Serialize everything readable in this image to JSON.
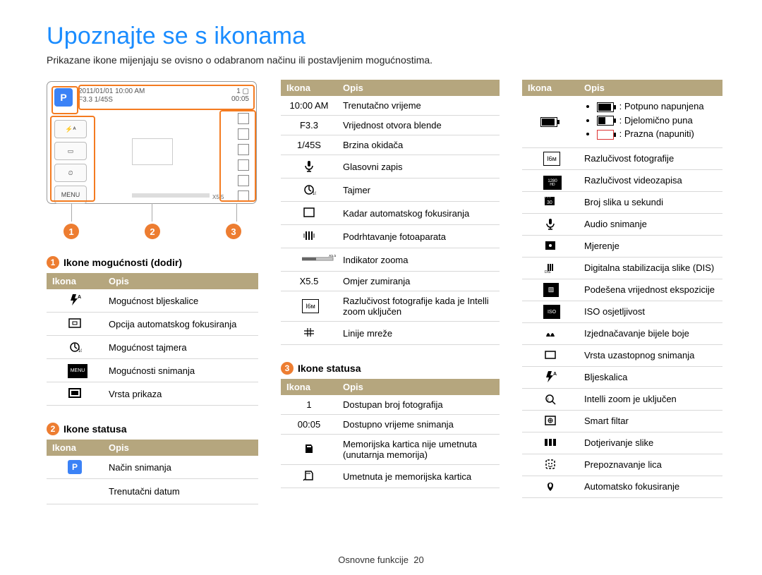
{
  "title": "Upoznajte se s ikonama",
  "subtitle": "Prikazane ikone mijenjaju se ovisno o odabranom načinu ili postavljenim mogućnostima.",
  "footer_section": "Osnovne funkcije",
  "footer_page": "20",
  "colors": {
    "title": "#1a8cff",
    "marker": "#ed7d31",
    "table_header_bg": "#b5a67e",
    "table_header_fg": "#ffffff",
    "row_border": "#d8d8d8",
    "orange_box": "#f47b20"
  },
  "screen": {
    "p_label": "P",
    "top_line1": "2011/01/01  10:00 AM",
    "top_line2": "F3.3   1/45S",
    "top_right1": "1 ▢",
    "top_right2": "00:05",
    "zoom_label": "X5.5",
    "left_buttons": [
      "⚡ᴬ",
      "▭",
      "⏲",
      "MENU"
    ]
  },
  "marker_labels": [
    "1",
    "2",
    "3"
  ],
  "sections": {
    "s1_title": "Ikone mogućnosti (dodir)",
    "s2_title": "Ikone statusa",
    "s3_title": "Ikone statusa"
  },
  "headers": {
    "icon": "Ikona",
    "desc": "Opis"
  },
  "t1": [
    {
      "icon": "flash-a",
      "desc": "Mogućnost bljeskalice"
    },
    {
      "icon": "af-frame",
      "desc": "Opcija automatskog fokusiranja"
    },
    {
      "icon": "timer",
      "desc": "Mogućnost tajmera"
    },
    {
      "icon": "menu",
      "desc": "Mogućnosti snimanja"
    },
    {
      "icon": "display",
      "desc": "Vrsta prikaza"
    }
  ],
  "t2a": [
    {
      "icon": "p-mode",
      "desc": "Način snimanja"
    },
    {
      "icon": "date",
      "icon_text": "2011/01/01",
      "desc": "Trenutačni datum"
    }
  ],
  "t2b": [
    {
      "icon_text": "10:00 AM",
      "desc": "Trenutačno vrijeme"
    },
    {
      "icon_text": "F3.3",
      "desc": "Vrijednost otvora blende"
    },
    {
      "icon_text": "1/45S",
      "desc": "Brzina okidača"
    },
    {
      "icon": "mic",
      "desc": "Glasovni zapis"
    },
    {
      "icon": "timer",
      "desc": "Tajmer"
    },
    {
      "icon": "frame",
      "desc": "Kadar automatskog fokusiranja"
    },
    {
      "icon": "shake",
      "desc": "Podrhtavanje fotoaparata"
    },
    {
      "icon": "zoom-bar",
      "desc": "Indikator zooma"
    },
    {
      "icon_text": "X5.5",
      "desc": "Omjer zumiranja"
    },
    {
      "icon": "res16m",
      "icon_text": "I6ᴍ",
      "desc": "Razlučivost fotografije kada je Intelli zoom uključen"
    },
    {
      "icon": "grid",
      "desc": "Linije mreže"
    }
  ],
  "t3": [
    {
      "icon_text": "1",
      "desc": "Dostupan broj fotografija"
    },
    {
      "icon_text": "00:05",
      "desc": "Dostupno vrijeme snimanja"
    },
    {
      "icon": "card-none",
      "desc": "Memorijska kartica nije umetnuta (unutarnja memorija)"
    },
    {
      "icon": "card",
      "desc": "Umetnuta je memorijska kartica"
    }
  ],
  "t4_battery": {
    "full": "Potpuno napunjena",
    "half": "Djelomično puna",
    "empty": "Prazna (napuniti)"
  },
  "t4": [
    {
      "icon": "res16m",
      "icon_text": "I6ᴍ",
      "desc": "Razlučivost fotografije"
    },
    {
      "icon": "vid1280",
      "icon_text": "1280",
      "desc": "Razlučivost videozapisa"
    },
    {
      "icon": "fps30",
      "desc": "Broj slika u sekundi"
    },
    {
      "icon": "mic",
      "desc": "Audio snimanje"
    },
    {
      "icon": "meter",
      "desc": "Mjerenje"
    },
    {
      "icon": "dis",
      "desc": "Digitalna stabilizacija slike (DIS)"
    },
    {
      "icon": "ev",
      "desc": "Podešena vrijednost ekspozicije"
    },
    {
      "icon": "iso",
      "desc": "ISO osjetljivost"
    },
    {
      "icon": "wb",
      "desc": "Izjednačavanje bijele boje"
    },
    {
      "icon": "drive",
      "desc": "Vrsta uzastopnog snimanja"
    },
    {
      "icon": "flash-a",
      "desc": "Bljeskalica"
    },
    {
      "icon": "intelli",
      "desc": "Intelli zoom je uključen"
    },
    {
      "icon": "smart",
      "desc": "Smart filtar"
    },
    {
      "icon": "adjust",
      "desc": "Dotjerivanje slike"
    },
    {
      "icon": "face",
      "desc": "Prepoznavanje lica"
    },
    {
      "icon": "macro",
      "desc": "Automatsko fokusiranje"
    }
  ]
}
